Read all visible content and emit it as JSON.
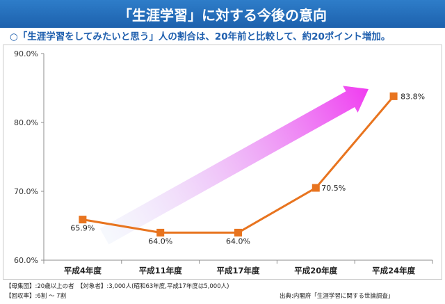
{
  "header": {
    "title": "「生涯学習」に対する今後の意向",
    "subtitle": "○「生涯学習をしてみたいと思う」人の割合は、20年前と比較して、約20ポイント増加。"
  },
  "chart_data": {
    "type": "line",
    "categories": [
      "平成4年度",
      "平成11年度",
      "平成17年度",
      "平成20年度",
      "平成24年度"
    ],
    "values": [
      65.9,
      64.0,
      64.0,
      70.5,
      83.8
    ],
    "value_labels": [
      "65.9%",
      "64.0%",
      "64.0%",
      "70.5%",
      "83.8%"
    ],
    "ylim": [
      60,
      90
    ],
    "yticks": [
      "60.0%",
      "70.0%",
      "80.0%",
      "90.0%"
    ],
    "grid": false,
    "annotation": "upward-trend-arrow",
    "colors": {
      "line": "#e8741f",
      "marker": "#e8741f",
      "arrow_start": "#dce6f8",
      "arrow_end": "#f03cf0"
    }
  },
  "footnotes": {
    "population": "【母集団】:20歳以上の者　【対象者】:3,000人(昭和63年度,平成17年度は5,000人)",
    "response_rate": "【回収率】:6割 ～ 7割",
    "source": "出典:内閣府「生涯学習に関する世論調査」"
  }
}
